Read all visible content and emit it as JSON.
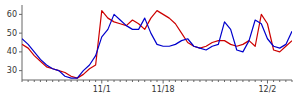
{
  "chart_data": {
    "type": "line",
    "categories": [
      null,
      null,
      null,
      null,
      null,
      null,
      null,
      null,
      null,
      null,
      null,
      null,
      null,
      "11/1",
      null,
      null,
      null,
      null,
      null,
      null,
      null,
      null,
      null,
      "11/18",
      null,
      null,
      null,
      null,
      null,
      null,
      null,
      null,
      null,
      null,
      null,
      null,
      null,
      null,
      null,
      null,
      "12/2",
      null,
      null,
      null,
      null
    ],
    "series": [
      {
        "color": "#cc0000",
        "values": [
          44,
          42,
          38,
          35,
          32,
          31,
          30,
          29,
          27,
          26,
          28,
          31,
          33,
          62,
          58,
          56,
          55,
          54,
          57,
          55,
          52,
          58,
          62,
          60,
          58,
          55,
          50,
          45,
          43,
          42,
          43,
          45,
          46,
          46,
          44,
          43,
          44,
          46,
          43,
          60,
          55,
          41,
          40,
          43,
          46
        ]
      },
      {
        "color": "#0000cc",
        "values": [
          47,
          44,
          40,
          36,
          33,
          31,
          30,
          27,
          26,
          26,
          30,
          33,
          38,
          48,
          52,
          60,
          57,
          54,
          52,
          52,
          58,
          50,
          44,
          43,
          43,
          44,
          46,
          47,
          43,
          42,
          41,
          43,
          44,
          56,
          52,
          41,
          40,
          46,
          57,
          55,
          47,
          43,
          42,
          44,
          51
        ]
      }
    ],
    "ylim": [
      25,
      65
    ],
    "yticks": [
      30,
      40,
      50,
      60
    ],
    "grid": false
  }
}
